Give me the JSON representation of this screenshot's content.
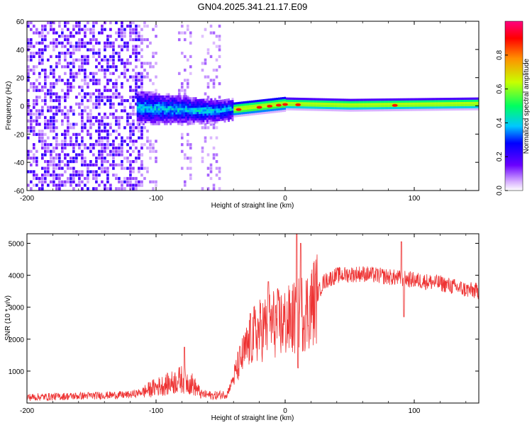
{
  "chart_data": [
    {
      "type": "heatmap",
      "title": "GN04.2025.341.21.17.E09",
      "xlabel": "Height of straight line (km)",
      "ylabel": "Frequency (Hz)",
      "xlim": [
        -200,
        150
      ],
      "ylim": [
        -60,
        60
      ],
      "xticks": [
        -200,
        -100,
        0,
        100
      ],
      "yticks": [
        -60,
        -40,
        -20,
        0,
        20,
        40,
        60
      ],
      "colorbar": {
        "label": "Normalized spectral amplitude",
        "range": [
          0.0,
          1.0
        ],
        "ticks": [
          0.0,
          0.2,
          0.4,
          0.6,
          0.8
        ],
        "colors": [
          "#ffffff",
          "#d9b3ff",
          "#6a00ff",
          "#0000ff",
          "#00c8ff",
          "#00ff60",
          "#c8ff00",
          "#ff9000",
          "#ff0000",
          "#ff0080"
        ]
      },
      "features": {
        "noise_region_km": [
          -200,
          -112
        ],
        "sparse_noise_columns_km": [
          [
            -112,
            -100
          ],
          [
            -83,
            -72
          ],
          [
            -65,
            -50
          ]
        ],
        "line_track": [
          {
            "x": -110,
            "f": -2
          },
          {
            "x": -90,
            "f": -3
          },
          {
            "x": -70,
            "f": -4
          },
          {
            "x": -50,
            "f": -4
          },
          {
            "x": -30,
            "f": -2
          },
          {
            "x": 0,
            "f": 1
          },
          {
            "x": 50,
            "f": 0
          },
          {
            "x": 100,
            "f": 0.5
          },
          {
            "x": 150,
            "f": 1
          }
        ],
        "peak_points_km": [
          -36,
          -20,
          -12,
          -5,
          0,
          10,
          85
        ]
      }
    },
    {
      "type": "line",
      "xlabel": "Height of straight line (km)",
      "ylabel": "SNR (10 * v/v)",
      "xlim": [
        -200,
        150
      ],
      "ylim": [
        0,
        5300
      ],
      "xticks": [
        -200,
        -100,
        0,
        100
      ],
      "yticks": [
        1000,
        2000,
        3000,
        4000,
        5000
      ],
      "color": "#ee3333",
      "series": [
        {
          "name": "SNR",
          "envelope": [
            {
              "x": -200,
              "y": 180
            },
            {
              "x": -150,
              "y": 230
            },
            {
              "x": -120,
              "y": 260
            },
            {
              "x": -110,
              "y": 350
            },
            {
              "x": -100,
              "y": 500
            },
            {
              "x": -90,
              "y": 600
            },
            {
              "x": -80,
              "y": 750
            },
            {
              "x": -72,
              "y": 600
            },
            {
              "x": -65,
              "y": 280
            },
            {
              "x": -55,
              "y": 230
            },
            {
              "x": -45,
              "y": 280
            },
            {
              "x": -40,
              "y": 800
            },
            {
              "x": -35,
              "y": 1300
            },
            {
              "x": -25,
              "y": 2100
            },
            {
              "x": -15,
              "y": 2400
            },
            {
              "x": -10,
              "y": 2500
            },
            {
              "x": 0,
              "y": 2500
            },
            {
              "x": 5,
              "y": 2600
            },
            {
              "x": 12,
              "y": 2800
            },
            {
              "x": 20,
              "y": 3000
            },
            {
              "x": 25,
              "y": 3400
            },
            {
              "x": 30,
              "y": 3800
            },
            {
              "x": 40,
              "y": 4000
            },
            {
              "x": 60,
              "y": 4050
            },
            {
              "x": 80,
              "y": 3950
            },
            {
              "x": 100,
              "y": 3850
            },
            {
              "x": 120,
              "y": 3750
            },
            {
              "x": 140,
              "y": 3550
            },
            {
              "x": 150,
              "y": 3500
            }
          ],
          "spikes": [
            {
              "x": -78,
              "y": 1750
            },
            {
              "x": -27,
              "y": 2800
            },
            {
              "x": -13,
              "y": 3800
            },
            {
              "x": 9,
              "y": 5300
            },
            {
              "x": 10,
              "y": 1100
            },
            {
              "x": 12,
              "y": 5000
            },
            {
              "x": 90,
              "y": 5050
            },
            {
              "x": 92,
              "y": 2700
            }
          ]
        }
      ]
    }
  ]
}
